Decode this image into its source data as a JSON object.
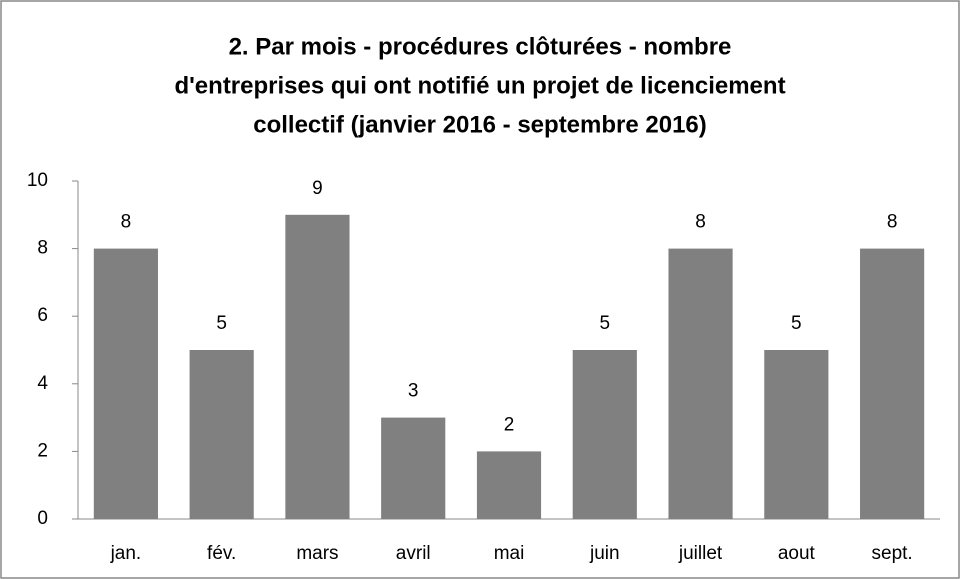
{
  "chart_data": {
    "type": "bar",
    "title": [
      "2. Par mois - procédures clôturées -  nombre",
      "d'entreprises qui ont notifié un projet de licenciement",
      "collectif (janvier 2016 - septembre 2016)"
    ],
    "categories": [
      "jan.",
      "fév.",
      "mars",
      "avril",
      "mai",
      "juin",
      "juillet",
      "aout",
      "sept."
    ],
    "values": [
      8,
      5,
      9,
      3,
      2,
      5,
      8,
      5,
      8
    ],
    "color": "#808080",
    "ylim": [
      0,
      10
    ],
    "yticks": [
      0,
      2,
      4,
      6,
      8,
      10
    ],
    "grid": false
  }
}
